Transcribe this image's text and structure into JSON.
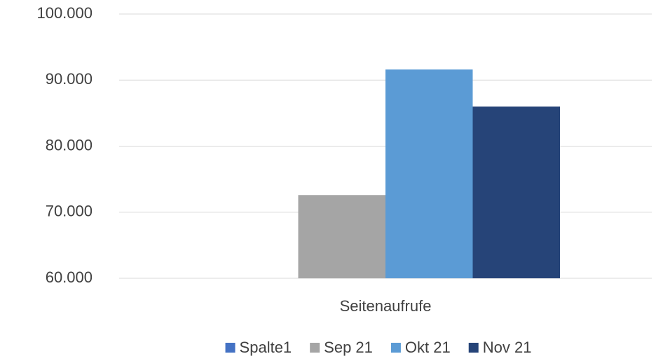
{
  "chart_data": {
    "type": "bar",
    "categories": [
      "Seitenaufrufe"
    ],
    "series": [
      {
        "name": "Spalte1",
        "color": "#4472c4",
        "values": [
          null
        ]
      },
      {
        "name": "Sep 21",
        "color": "#a5a5a5",
        "values": [
          72600
        ]
      },
      {
        "name": "Okt 21",
        "color": "#5b9bd5",
        "values": [
          91600
        ]
      },
      {
        "name": "Nov 21",
        "color": "#264478",
        "values": [
          86000
        ]
      }
    ],
    "ylim": [
      60000,
      100000
    ],
    "yticks": [
      {
        "value": 60000,
        "label": "60.000"
      },
      {
        "value": 70000,
        "label": "70.000"
      },
      {
        "value": 80000,
        "label": "80.000"
      },
      {
        "value": 90000,
        "label": "90.000"
      },
      {
        "value": 100000,
        "label": "100.000"
      }
    ],
    "grid": true,
    "legend": "bottom"
  }
}
